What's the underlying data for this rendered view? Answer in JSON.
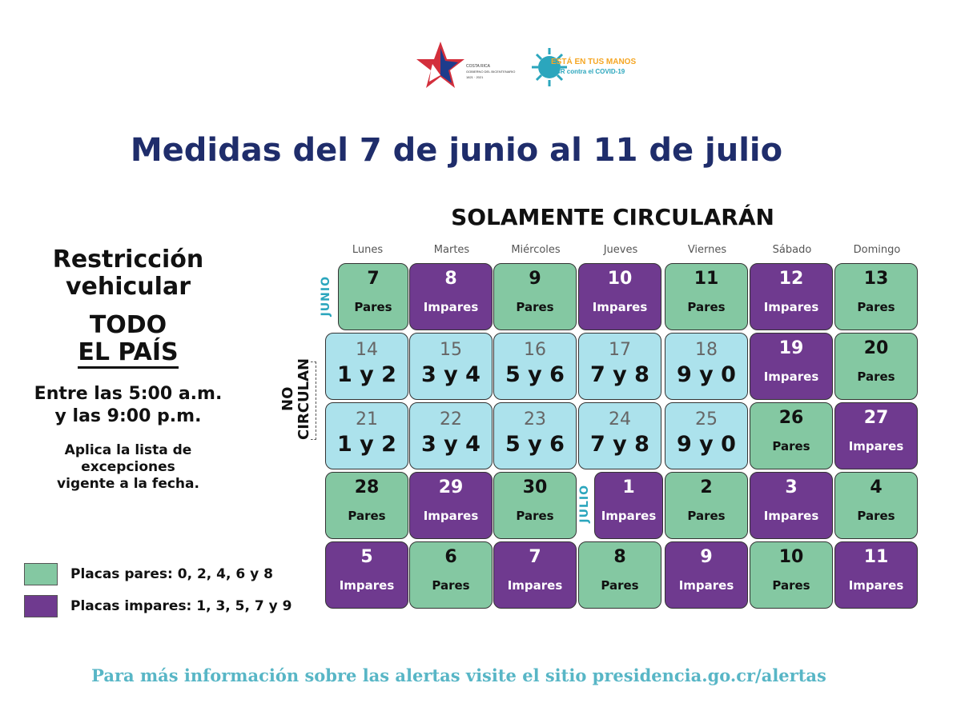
{
  "logos": {
    "gov_line1": "COSTA RICA",
    "gov_line2": "GOBIERNO DEL BICENTENARIO",
    "gov_line3": "1821 · 2021",
    "covid_line1": "ESTÁ EN TUS MANOS",
    "covid_line2": "CR contra el COVID-19"
  },
  "title": "Medidas del 7 de junio al 11 de julio",
  "subtitle": "SOLAMENTE CIRCULARÁN",
  "left": {
    "restr1": "Restricción",
    "restr2": "vehicular",
    "todo1": "TODO",
    "todo2": "EL PAÍS",
    "hours1": "Entre las 5:00 a.m.",
    "hours2": "y las 9:00 p.m.",
    "note1": "Aplica la lista de",
    "note2": "excepciones",
    "note3": "vigente a la fecha."
  },
  "legend": {
    "even": "Placas pares: 0, 2, 4, 6 y 8",
    "odd": "Placas impares: 1, 3, 5, 7 y 9"
  },
  "colors": {
    "even": "#84c8a2",
    "odd": "#6f3a8f",
    "restricted": "#ace2ec",
    "title": "#1f2d6b",
    "accent": "#2ba6bd"
  },
  "days": [
    "Lunes",
    "Martes",
    "Miércoles",
    "Jueves",
    "Viernes",
    "Sábado",
    "Domingo"
  ],
  "month_junio": "JUNIO",
  "month_julio": "JULIO",
  "no_circulan": "NO CIRCULAN",
  "weeks": [
    [
      {
        "n": "7",
        "t": "Pares",
        "k": "green"
      },
      {
        "n": "8",
        "t": "Impares",
        "k": "purple"
      },
      {
        "n": "9",
        "t": "Pares",
        "k": "green"
      },
      {
        "n": "10",
        "t": "Impares",
        "k": "purple"
      },
      {
        "n": "11",
        "t": "Pares",
        "k": "green"
      },
      {
        "n": "12",
        "t": "Impares",
        "k": "purple"
      },
      {
        "n": "13",
        "t": "Pares",
        "k": "green"
      }
    ],
    [
      {
        "n": "14",
        "t": "1 y 2",
        "k": "blue"
      },
      {
        "n": "15",
        "t": "3 y 4",
        "k": "blue"
      },
      {
        "n": "16",
        "t": "5 y 6",
        "k": "blue"
      },
      {
        "n": "17",
        "t": "7 y 8",
        "k": "blue"
      },
      {
        "n": "18",
        "t": "9 y 0",
        "k": "blue"
      },
      {
        "n": "19",
        "t": "Impares",
        "k": "purple"
      },
      {
        "n": "20",
        "t": "Pares",
        "k": "green"
      }
    ],
    [
      {
        "n": "21",
        "t": "1 y 2",
        "k": "blue"
      },
      {
        "n": "22",
        "t": "3 y 4",
        "k": "blue"
      },
      {
        "n": "23",
        "t": "5 y 6",
        "k": "blue"
      },
      {
        "n": "24",
        "t": "7 y 8",
        "k": "blue"
      },
      {
        "n": "25",
        "t": "9 y 0",
        "k": "blue"
      },
      {
        "n": "26",
        "t": "Pares",
        "k": "green"
      },
      {
        "n": "27",
        "t": "Impares",
        "k": "purple"
      }
    ],
    [
      {
        "n": "28",
        "t": "Pares",
        "k": "green"
      },
      {
        "n": "29",
        "t": "Impares",
        "k": "purple"
      },
      {
        "n": "30",
        "t": "Pares",
        "k": "green"
      },
      {
        "n": "1",
        "t": "Impares",
        "k": "purple"
      },
      {
        "n": "2",
        "t": "Pares",
        "k": "green"
      },
      {
        "n": "3",
        "t": "Impares",
        "k": "purple"
      },
      {
        "n": "4",
        "t": "Pares",
        "k": "green"
      }
    ],
    [
      {
        "n": "5",
        "t": "Impares",
        "k": "purple"
      },
      {
        "n": "6",
        "t": "Pares",
        "k": "green"
      },
      {
        "n": "7",
        "t": "Impares",
        "k": "purple"
      },
      {
        "n": "8",
        "t": "Pares",
        "k": "green"
      },
      {
        "n": "9",
        "t": "Impares",
        "k": "purple"
      },
      {
        "n": "10",
        "t": "Pares",
        "k": "green"
      },
      {
        "n": "11",
        "t": "Impares",
        "k": "purple"
      }
    ]
  ],
  "footer": "Para más información sobre las alertas visite el sitio presidencia.go.cr/alertas"
}
